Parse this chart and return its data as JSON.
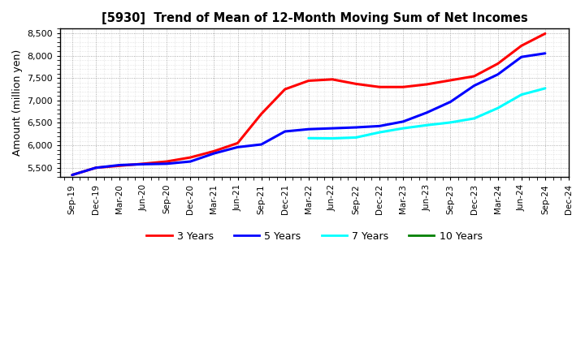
{
  "title": "[5930]  Trend of Mean of 12-Month Moving Sum of Net Incomes",
  "ylabel": "Amount (million yen)",
  "ylim": [
    5300,
    8600
  ],
  "yticks": [
    5500,
    6000,
    6500,
    7000,
    7500,
    8000,
    8500
  ],
  "x_labels": [
    "Sep-19",
    "Dec-19",
    "Mar-20",
    "Jun-20",
    "Sep-20",
    "Dec-20",
    "Mar-21",
    "Jun-21",
    "Sep-21",
    "Dec-21",
    "Mar-22",
    "Jun-22",
    "Sep-22",
    "Dec-22",
    "Mar-23",
    "Jun-23",
    "Sep-23",
    "Dec-23",
    "Mar-24",
    "Jun-24",
    "Sep-24",
    "Dec-24"
  ],
  "series": {
    "3 Years": {
      "color": "#FF0000",
      "data_x": [
        0,
        1,
        2,
        3,
        4,
        5,
        6,
        7,
        8,
        9,
        10,
        11,
        12,
        13,
        14,
        15,
        16,
        17,
        18,
        19,
        20
      ],
      "data_y": [
        5340,
        5500,
        5545,
        5590,
        5640,
        5730,
        5870,
        6050,
        6700,
        7250,
        7440,
        7470,
        7370,
        7300,
        7300,
        7360,
        7450,
        7540,
        7820,
        8220,
        8490
      ]
    },
    "5 Years": {
      "color": "#0000FF",
      "data_x": [
        0,
        1,
        2,
        3,
        4,
        5,
        6,
        7,
        8,
        9,
        10,
        11,
        12,
        13,
        14,
        15,
        16,
        17,
        18,
        19,
        20
      ],
      "data_y": [
        5340,
        5500,
        5560,
        5580,
        5590,
        5640,
        5820,
        5960,
        6020,
        6310,
        6360,
        6380,
        6400,
        6430,
        6530,
        6730,
        6970,
        7330,
        7580,
        7970,
        8050
      ]
    },
    "7 Years": {
      "color": "#00FFFF",
      "data_x": [
        10,
        11,
        12,
        13,
        14,
        15,
        16,
        17,
        18,
        19,
        20
      ],
      "data_y": [
        6160,
        6155,
        6175,
        6290,
        6380,
        6450,
        6510,
        6600,
        6830,
        7130,
        7270
      ]
    },
    "10 Years": {
      "color": "#008000",
      "data_x": [],
      "data_y": []
    }
  },
  "background_color": "#ffffff",
  "plot_bg_color": "#ffffff",
  "grid_color": "#999999"
}
